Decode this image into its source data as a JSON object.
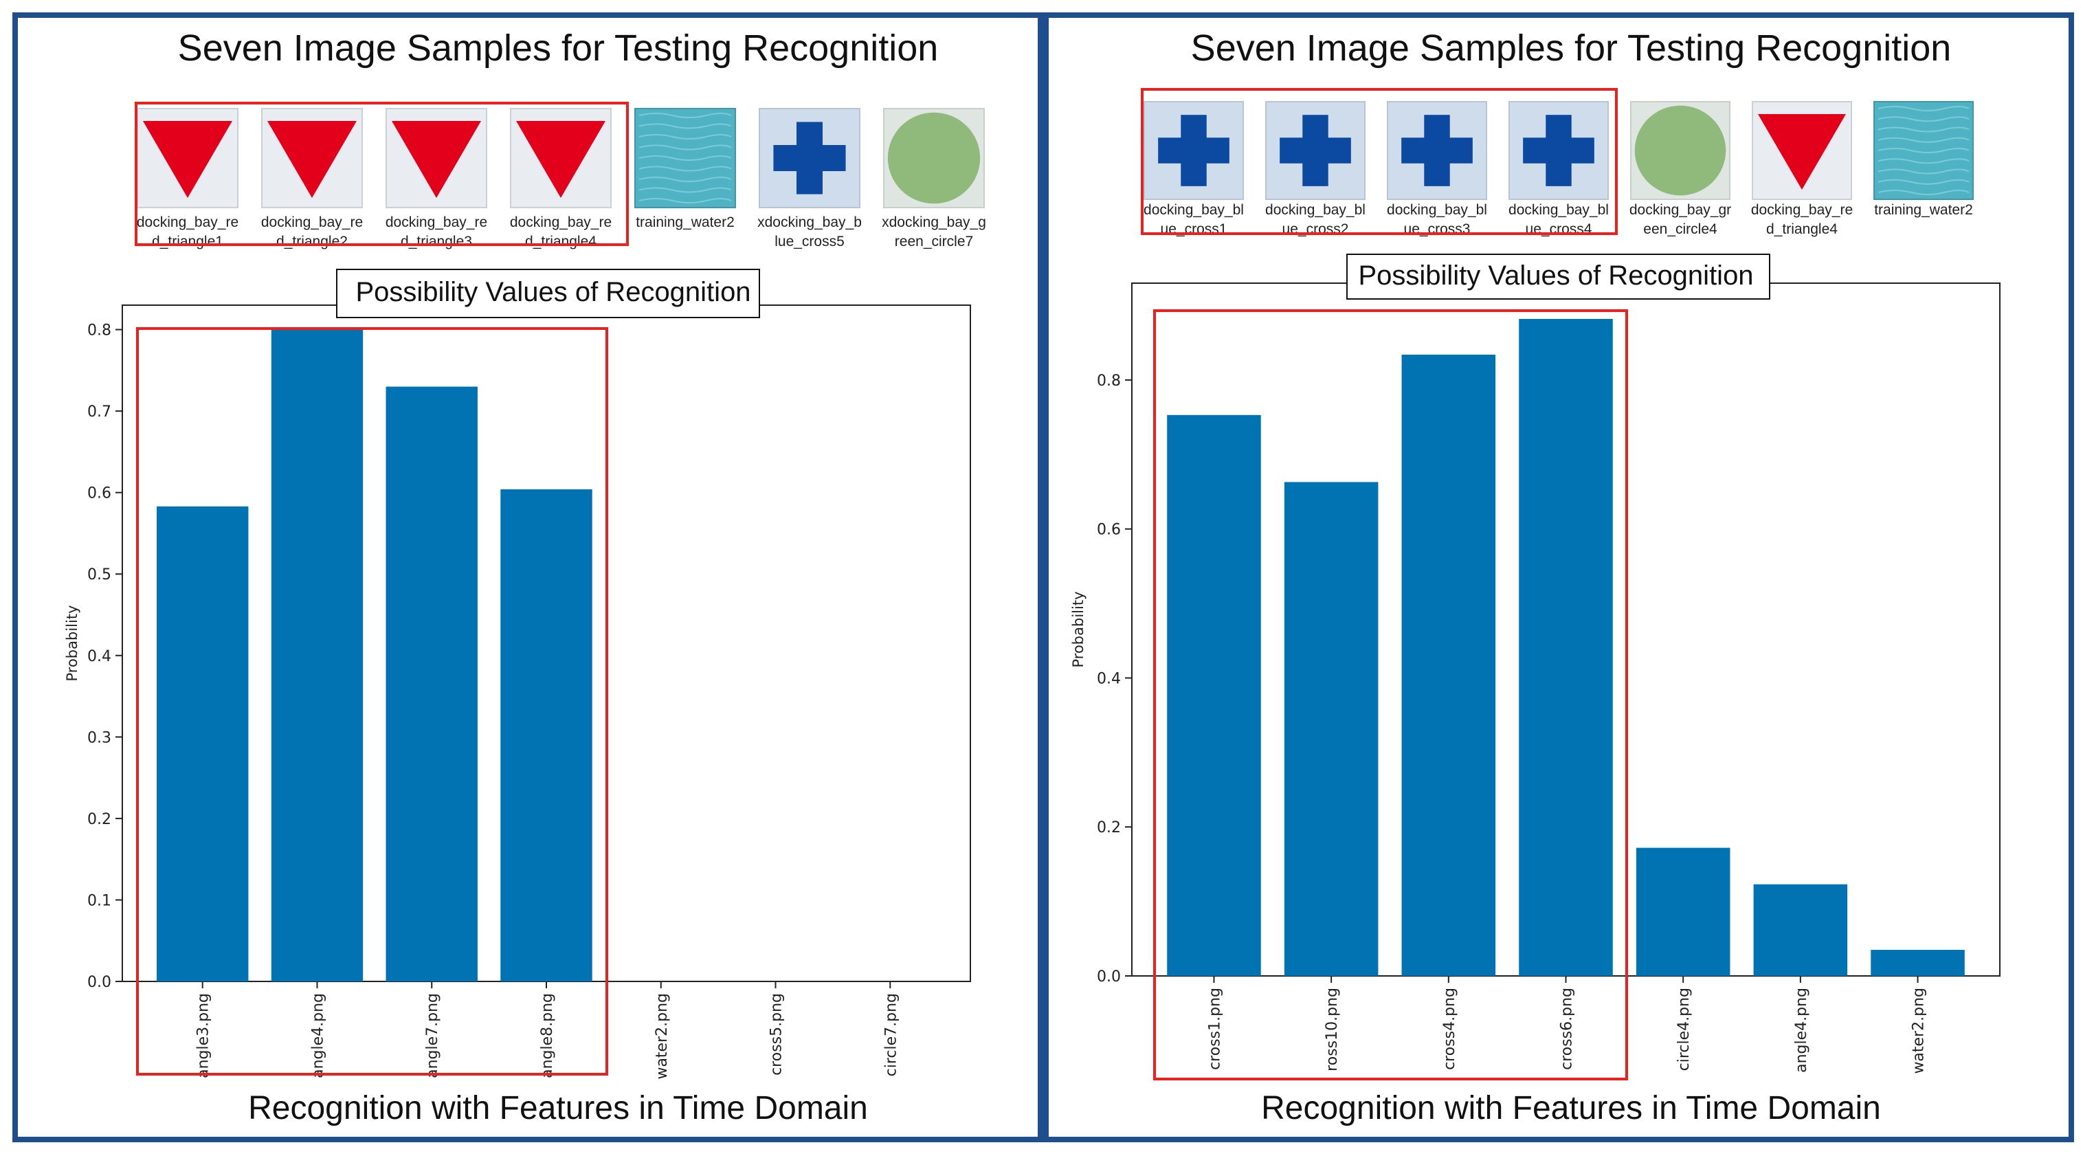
{
  "colors": {
    "frame": "#1f4e8c",
    "bar": "#0173b2",
    "highlight": "#e8231f",
    "axis": "#222222"
  },
  "panels": [
    {
      "heading": "Seven Image Samples for Testing Recognition",
      "footer": "Recognition with Features in Time Domain",
      "samples": [
        {
          "caption": [
            "docking_bay_re",
            "d_triangle1"
          ],
          "shape": "red-triangle-icon"
        },
        {
          "caption": [
            "docking_bay_re",
            "d_triangle2"
          ],
          "shape": "red-triangle-icon"
        },
        {
          "caption": [
            "docking_bay_re",
            "d_triangle3"
          ],
          "shape": "red-triangle-icon"
        },
        {
          "caption": [
            "docking_bay_re",
            "d_triangle4"
          ],
          "shape": "red-triangle-icon"
        },
        {
          "caption": [
            "training_water2"
          ],
          "shape": "water-texture-icon"
        },
        {
          "caption": [
            "xdocking_bay_b",
            "lue_cross5"
          ],
          "shape": "blue-cross-icon"
        },
        {
          "caption": [
            "xdocking_bay_g",
            "reen_circle7"
          ],
          "shape": "green-circle-icon"
        }
      ],
      "chart_data": {
        "type": "bar",
        "title": "Possibility Values of Recognition",
        "ylabel": "Probability",
        "xlabel": "",
        "categories": [
          "angle3.png",
          "angle4.png",
          "angle7.png",
          "angle8.png",
          "water2.png",
          "cross5.png",
          "circle7.png"
        ],
        "values": [
          0.583,
          0.8,
          0.73,
          0.604,
          0,
          0,
          0
        ],
        "ylim": [
          0,
          0.83
        ],
        "yticks": [
          0.0,
          0.1,
          0.2,
          0.3,
          0.4,
          0.5,
          0.6,
          0.7,
          0.8
        ],
        "highlighted_count": 4,
        "grid": false
      }
    },
    {
      "heading": "Seven Image Samples for Testing Recognition",
      "footer": "Recognition with Features in Time Domain",
      "samples": [
        {
          "caption": [
            "docking_bay_bl",
            "ue_cross1"
          ],
          "shape": "blue-cross-icon"
        },
        {
          "caption": [
            "docking_bay_bl",
            "ue_cross2"
          ],
          "shape": "blue-cross-icon"
        },
        {
          "caption": [
            "docking_bay_bl",
            "ue_cross3"
          ],
          "shape": "blue-cross-icon"
        },
        {
          "caption": [
            "docking_bay_bl",
            "ue_cross4"
          ],
          "shape": "blue-cross-icon"
        },
        {
          "caption": [
            "docking_bay_gr",
            "een_circle4"
          ],
          "shape": "green-circle-icon"
        },
        {
          "caption": [
            "docking_bay_re",
            "d_triangle4"
          ],
          "shape": "red-triangle-icon"
        },
        {
          "caption": [
            "training_water2"
          ],
          "shape": "water-texture-icon"
        }
      ],
      "chart_data": {
        "type": "bar",
        "title": "Possibility Values of Recognition",
        "ylabel": "Probability",
        "xlabel": "",
        "categories": [
          "cross1.png",
          "ross10.png",
          "cross4.png",
          "cross6.png",
          "circle4.png",
          "angle4.png",
          "water2.png"
        ],
        "values": [
          0.753,
          0.663,
          0.834,
          0.882,
          0.172,
          0.123,
          0.035
        ],
        "ylim": [
          0,
          0.93
        ],
        "yticks": [
          0.0,
          0.2,
          0.4,
          0.6,
          0.8
        ],
        "highlighted_count": 4,
        "grid": false
      }
    }
  ]
}
